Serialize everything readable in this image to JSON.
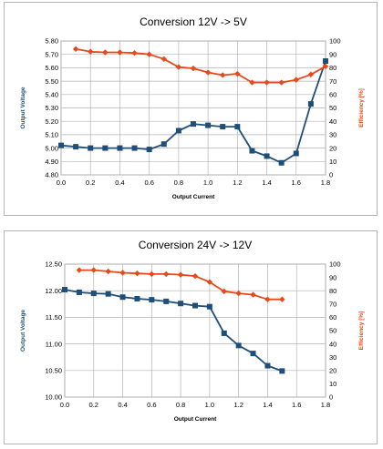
{
  "chart_data": [
    {
      "type": "line",
      "title": "Conversion 12V -> 5V",
      "xlabel": "Output Current",
      "ylabel_left": "Output Voltage",
      "ylabel_right": "Efficiency [%]",
      "xlim": [
        0,
        1.8
      ],
      "x_ticks": [
        "0.0",
        "0.2",
        "0.4",
        "0.6",
        "0.8",
        "1.0",
        "1.2",
        "1.4",
        "1.6",
        "1.8"
      ],
      "ylim_left": [
        4.8,
        5.8
      ],
      "y_ticks_left": [
        "5.80",
        "5.70",
        "5.60",
        "5.50",
        "5.40",
        "5.30",
        "5.20",
        "5.10",
        "5.00",
        "4.90",
        "4.80"
      ],
      "ylim_right": [
        0,
        100
      ],
      "y_ticks_right": [
        "100",
        "90",
        "80",
        "70",
        "60",
        "50",
        "40",
        "30",
        "20",
        "10",
        "0"
      ],
      "grid": true,
      "series": [
        {
          "axis": "left",
          "color": "#1f4e79",
          "marker": "square",
          "x": [
            0.0,
            0.1,
            0.2,
            0.3,
            0.4,
            0.5,
            0.6,
            0.7,
            0.8,
            0.9,
            1.0,
            1.1,
            1.2,
            1.3,
            1.4,
            1.5,
            1.6,
            1.7,
            1.8
          ],
          "y": [
            5.02,
            5.01,
            5.0,
            5.0,
            5.0,
            5.0,
            4.99,
            5.03,
            5.13,
            5.18,
            5.17,
            5.16,
            5.16,
            4.98,
            4.94,
            4.89,
            4.96,
            5.33,
            5.65
          ]
        },
        {
          "axis": "right",
          "color": "#e8481a",
          "marker": "diamond",
          "x": [
            0.1,
            0.2,
            0.3,
            0.4,
            0.5,
            0.6,
            0.7,
            0.8,
            0.9,
            1.0,
            1.1,
            1.2,
            1.3,
            1.4,
            1.5,
            1.6,
            1.7,
            1.8
          ],
          "y": [
            94,
            92,
            91.5,
            91.5,
            91,
            90,
            86.5,
            80.5,
            79.5,
            76.5,
            74.5,
            75.5,
            69,
            69,
            69,
            71,
            75,
            81
          ]
        }
      ]
    },
    {
      "type": "line",
      "title": "Conversion 24V -> 12V",
      "xlabel": "Output Current",
      "ylabel_left": "Output Voltage",
      "ylabel_right": "Efficiency [%]",
      "xlim": [
        0,
        1.8
      ],
      "x_ticks": [
        "0.0",
        "0.2",
        "0.4",
        "0.6",
        "0.8",
        "1.0",
        "1.2",
        "1.4",
        "1.6",
        "1.8"
      ],
      "ylim_left": [
        10.0,
        12.5
      ],
      "y_ticks_left": [
        "12.50",
        "12.00",
        "11.50",
        "11.00",
        "10.50",
        "10.00"
      ],
      "ylim_right": [
        0,
        100
      ],
      "y_ticks_right": [
        "100",
        "90",
        "80",
        "70",
        "60",
        "50",
        "40",
        "30",
        "20",
        "10",
        "0"
      ],
      "grid": true,
      "series": [
        {
          "axis": "left",
          "color": "#1f4e79",
          "marker": "square",
          "x": [
            0.0,
            0.1,
            0.2,
            0.3,
            0.4,
            0.5,
            0.6,
            0.7,
            0.8,
            0.9,
            1.0,
            1.1,
            1.2,
            1.3,
            1.4,
            1.5
          ],
          "y": [
            12.02,
            11.97,
            11.95,
            11.94,
            11.88,
            11.85,
            11.83,
            11.8,
            11.76,
            11.72,
            11.7,
            11.2,
            10.97,
            10.82,
            10.59,
            10.49
          ]
        },
        {
          "axis": "right",
          "color": "#e8481a",
          "marker": "diamond",
          "x": [
            0.1,
            0.2,
            0.3,
            0.4,
            0.5,
            0.6,
            0.7,
            0.8,
            0.9,
            1.0,
            1.1,
            1.2,
            1.3,
            1.4,
            1.5
          ],
          "y": [
            95.5,
            95.5,
            94.5,
            93.5,
            93,
            92.5,
            92.5,
            92,
            91,
            86.5,
            79.5,
            78,
            77,
            73.5,
            73.5
          ]
        }
      ]
    }
  ]
}
